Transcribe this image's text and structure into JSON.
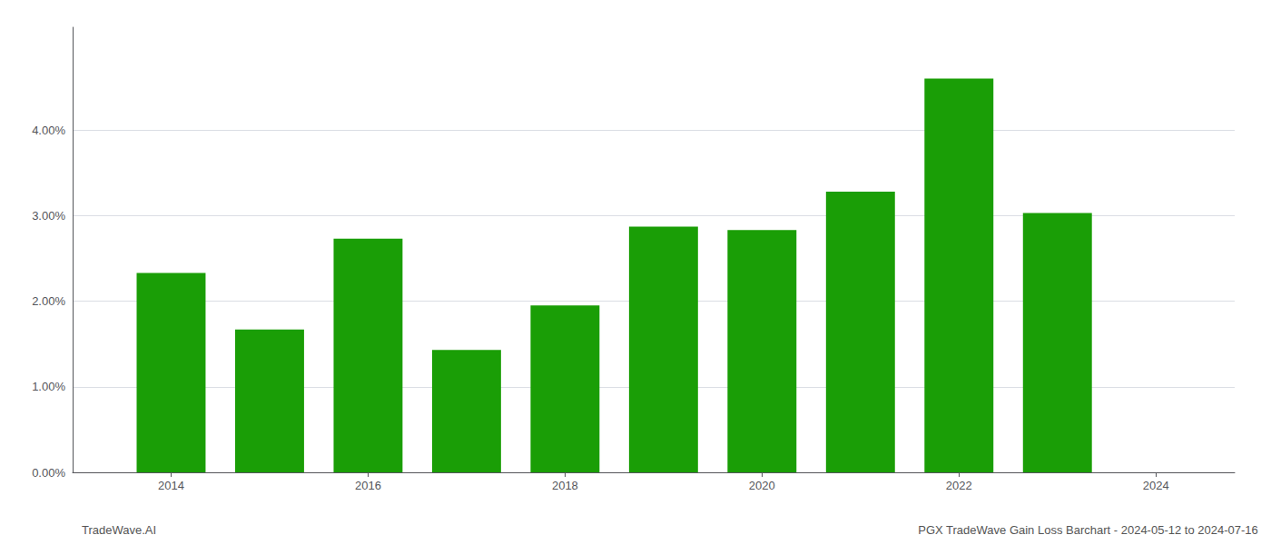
{
  "chart_data": {
    "type": "bar",
    "x": [
      2014,
      2015,
      2016,
      2017,
      2018,
      2019,
      2020,
      2021,
      2022,
      2023
    ],
    "values": [
      0.0233,
      0.0167,
      0.0273,
      0.0143,
      0.0195,
      0.0287,
      0.0283,
      0.0328,
      0.046,
      0.0303
    ],
    "color": "#1a9e06",
    "xlim": [
      2013.0,
      2024.8
    ],
    "xticks": [
      2014,
      2016,
      2018,
      2020,
      2022,
      2024
    ],
    "ylim": [
      0,
      0.052
    ],
    "yticks": [
      {
        "value": 0.0,
        "label": "0.00%"
      },
      {
        "value": 0.01,
        "label": "1.00%"
      },
      {
        "value": 0.02,
        "label": "2.00%"
      },
      {
        "value": 0.03,
        "label": "3.00%"
      },
      {
        "value": 0.04,
        "label": "4.00%"
      }
    ],
    "grid": true,
    "annotations": [
      "TradeWave.AI",
      "PGX TradeWave Gain Loss Barchart - 2024-05-12 to 2024-07-16"
    ]
  }
}
